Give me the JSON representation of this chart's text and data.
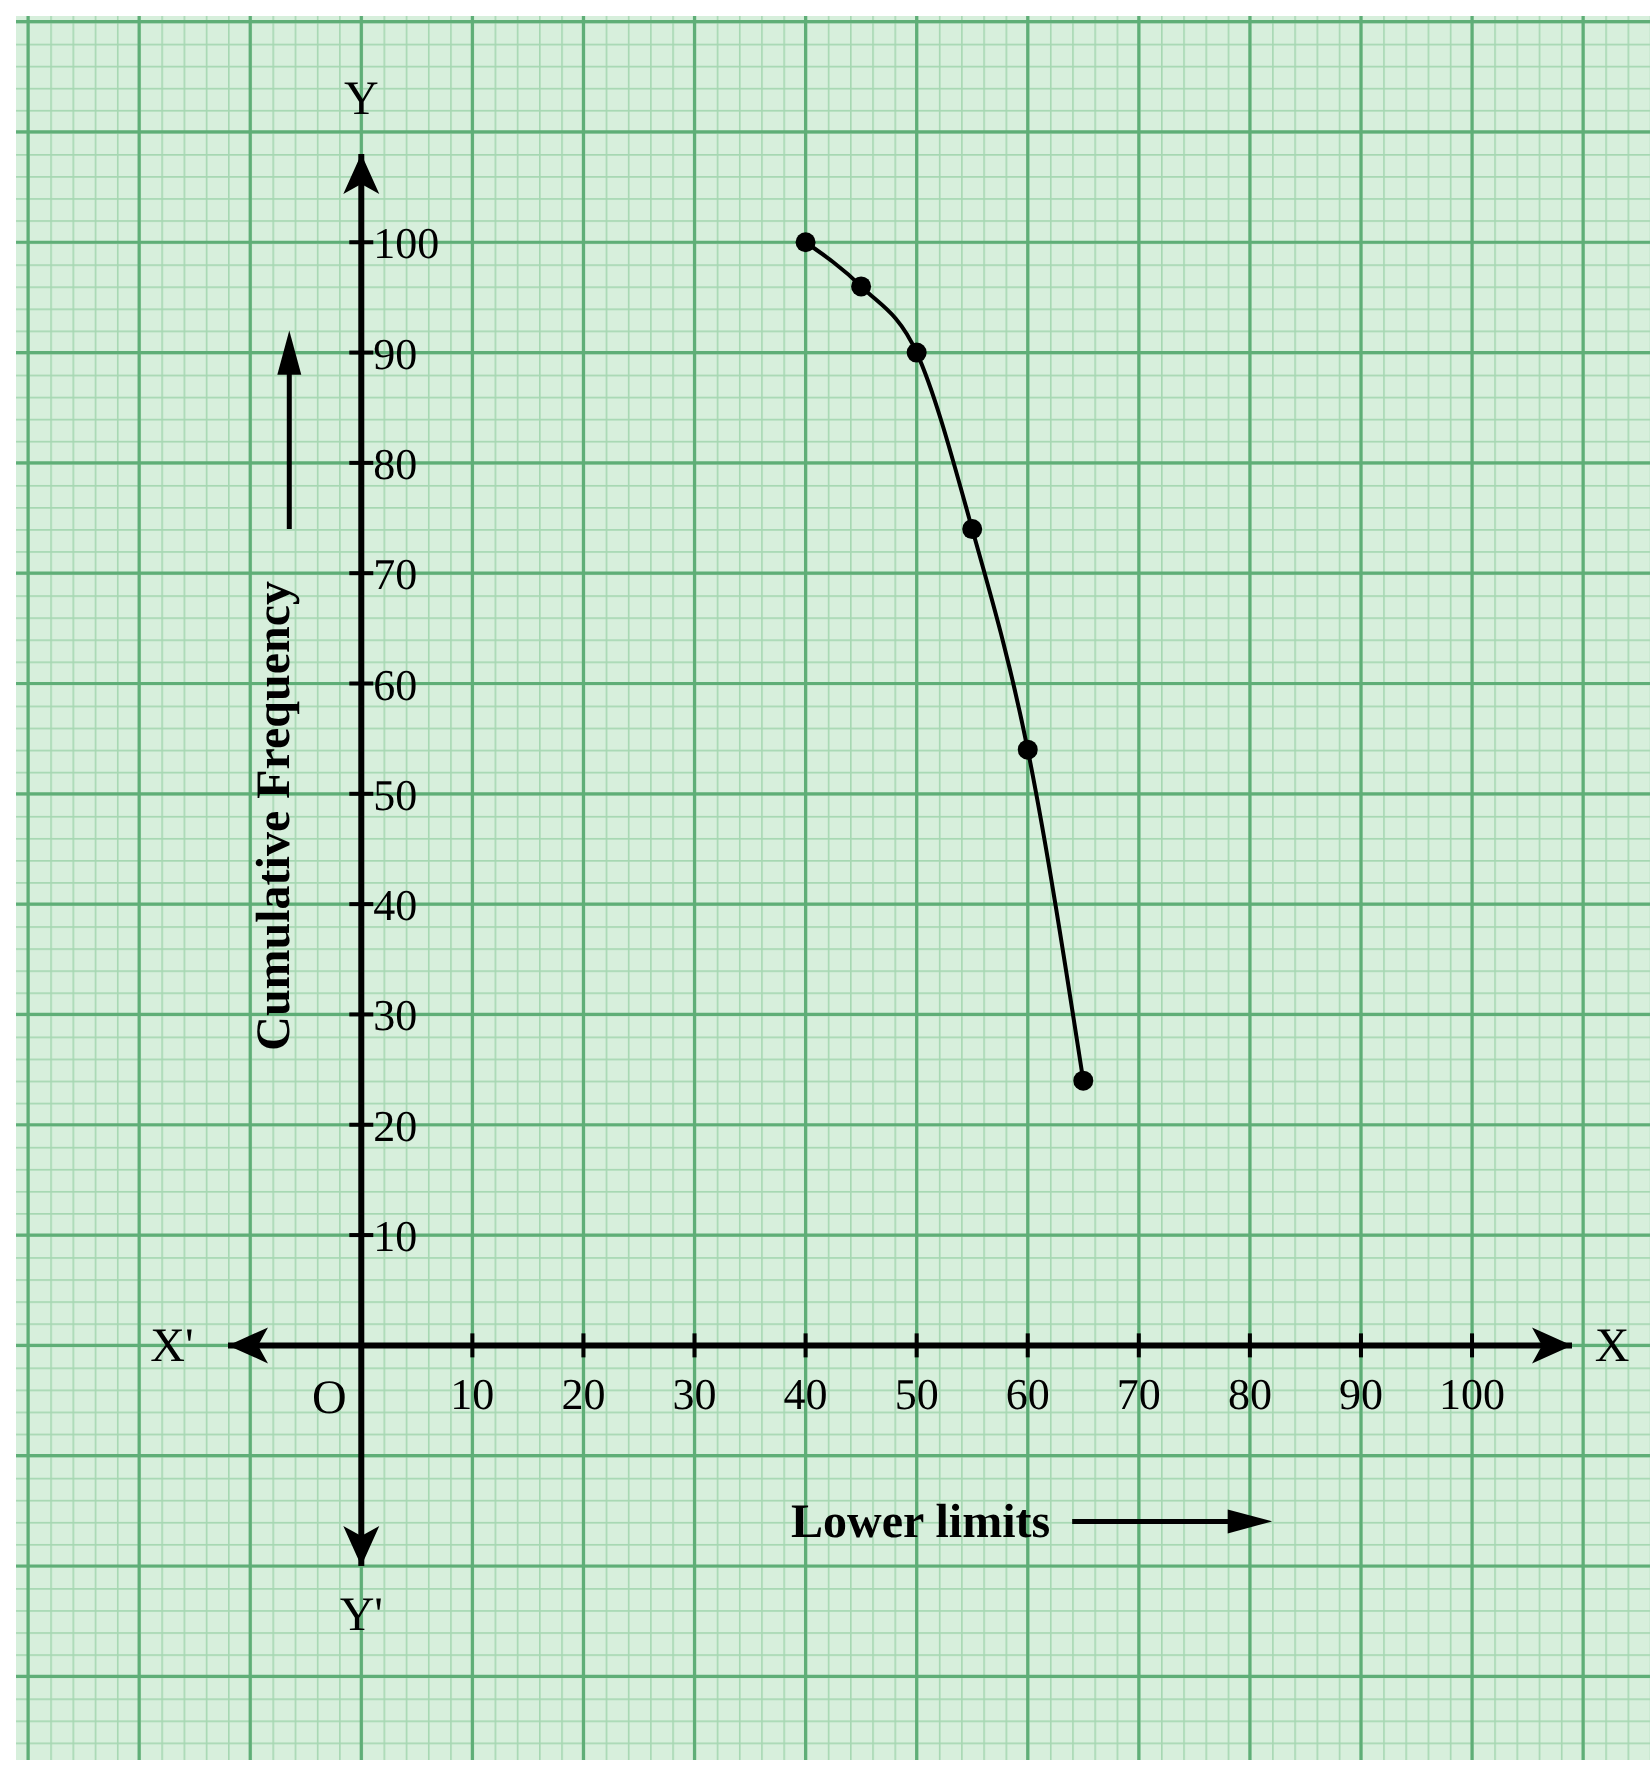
{
  "chart_data": {
    "type": "line",
    "xlabel": "Lower limits",
    "ylabel": "Cumulative Frequency",
    "x": [
      40,
      45,
      50,
      55,
      60,
      65
    ],
    "series": [
      {
        "color": "#000000",
        "values": [
          100,
          96,
          90,
          74,
          54,
          24
        ]
      }
    ],
    "xlim": [
      -12,
      109
    ],
    "ylim": [
      -20,
      108
    ],
    "xticks": [
      10,
      20,
      30,
      40,
      50,
      60,
      70,
      80,
      90,
      100
    ],
    "yticks": [
      10,
      20,
      30,
      40,
      50,
      60,
      70,
      80,
      90,
      100
    ],
    "grid": true,
    "marker": "circle",
    "line_style": "solid",
    "annotations": [
      "X'",
      "X",
      "Y",
      "Y'",
      "O"
    ]
  }
}
